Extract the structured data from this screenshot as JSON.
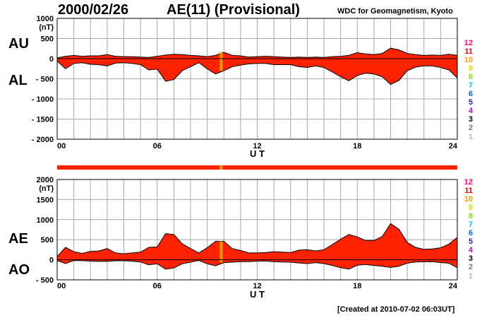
{
  "header": {
    "date": "2000/02/26",
    "title": "AE(11) (Provisional)",
    "organization": "WDC for Geomagnetism, Kyoto"
  },
  "footer": {
    "created": "[Created at 2010-07-02 06:03UT]"
  },
  "status_levels": [
    "12",
    "11",
    "10",
    "9",
    "8",
    "7",
    "6",
    "5",
    "4",
    "3",
    "2",
    "1"
  ],
  "colors": {
    "fill": "#ff2200",
    "highlight": "#ff9900",
    "grid": "#a8a8a8",
    "level_colors": [
      "#ff0077",
      "#ee0000",
      "#ff9900",
      "#dddd00",
      "#88dd00",
      "#00cccc",
      "#0066ff",
      "#2222bb",
      "#bb00dd",
      "#000000",
      "#777777",
      "#bbbbbb"
    ]
  },
  "chart_data": [
    {
      "type": "area",
      "series": [
        {
          "name": "AU",
          "x": [
            0,
            0.5,
            1,
            1.5,
            2,
            2.5,
            3,
            3.5,
            4,
            4.5,
            5,
            5.5,
            6,
            6.5,
            7,
            7.5,
            8,
            8.5,
            9,
            9.5,
            10,
            10.5,
            11,
            11.5,
            12,
            12.5,
            13,
            13.5,
            14,
            14.5,
            15,
            15.5,
            16,
            16.5,
            17,
            17.5,
            18,
            18.5,
            19,
            19.5,
            20,
            20.5,
            21,
            21.5,
            22,
            22.5,
            23,
            23.5,
            24
          ],
          "values": [
            20,
            60,
            80,
            60,
            70,
            70,
            100,
            60,
            50,
            50,
            40,
            30,
            60,
            90,
            110,
            100,
            80,
            70,
            50,
            80,
            160,
            80,
            70,
            40,
            50,
            60,
            50,
            40,
            30,
            40,
            30,
            40,
            30,
            50,
            60,
            80,
            150,
            120,
            100,
            130,
            260,
            220,
            130,
            100,
            80,
            90,
            80,
            110,
            80
          ]
        },
        {
          "name": "AL",
          "x": [
            0,
            0.5,
            1,
            1.5,
            2,
            2.5,
            3,
            3.5,
            4,
            4.5,
            5,
            5.5,
            6,
            6.5,
            7,
            7.5,
            8,
            8.5,
            9,
            9.5,
            10,
            10.5,
            11,
            11.5,
            12,
            12.5,
            13,
            13.5,
            14,
            14.5,
            15,
            15.5,
            16,
            16.5,
            17,
            17.5,
            18,
            18.5,
            19,
            19.5,
            20,
            20.5,
            21,
            21.5,
            22,
            22.5,
            23,
            23.5,
            24
          ],
          "values": [
            -60,
            -250,
            -120,
            -100,
            -140,
            -150,
            -180,
            -110,
            -100,
            -120,
            -150,
            -280,
            -260,
            -560,
            -520,
            -300,
            -200,
            -100,
            -250,
            -380,
            -300,
            -200,
            -160,
            -130,
            -120,
            -120,
            -150,
            -150,
            -150,
            -200,
            -220,
            -180,
            -220,
            -330,
            -450,
            -550,
            -420,
            -360,
            -380,
            -450,
            -640,
            -540,
            -300,
            -210,
            -180,
            -180,
            -220,
            -280,
            -480
          ]
        }
      ],
      "x_ticks": [
        "00",
        "06",
        "12",
        "18",
        "24"
      ],
      "xlabel": "U T",
      "ylabel": "(nT)",
      "ylim": [
        -2000,
        1000
      ],
      "y_ticks": [
        "1000",
        "500",
        "0",
        "- 500",
        "- 1000",
        "- 1500",
        "- 2000"
      ],
      "series_labels": [
        "AU",
        "AL"
      ],
      "grid": true
    },
    {
      "type": "area",
      "series": [
        {
          "name": "AE",
          "x": [
            0,
            0.5,
            1,
            1.5,
            2,
            2.5,
            3,
            3.5,
            4,
            4.5,
            5,
            5.5,
            6,
            6.5,
            7,
            7.5,
            8,
            8.5,
            9,
            9.5,
            10,
            10.5,
            11,
            11.5,
            12,
            12.5,
            13,
            13.5,
            14,
            14.5,
            15,
            15.5,
            16,
            16.5,
            17,
            17.5,
            18,
            18.5,
            19,
            19.5,
            20,
            20.5,
            21,
            21.5,
            22,
            22.5,
            23,
            23.5,
            24
          ],
          "values": [
            80,
            310,
            200,
            160,
            210,
            220,
            280,
            170,
            150,
            170,
            190,
            310,
            320,
            650,
            630,
            400,
            280,
            170,
            300,
            460,
            460,
            280,
            230,
            170,
            170,
            180,
            200,
            190,
            180,
            240,
            250,
            220,
            250,
            380,
            510,
            630,
            570,
            480,
            480,
            580,
            900,
            760,
            430,
            310,
            260,
            270,
            300,
            390,
            560
          ]
        },
        {
          "name": "AO",
          "x": [
            0,
            0.5,
            1,
            1.5,
            2,
            2.5,
            3,
            3.5,
            4,
            4.5,
            5,
            5.5,
            6,
            6.5,
            7,
            7.5,
            8,
            8.5,
            9,
            9.5,
            10,
            10.5,
            11,
            11.5,
            12,
            12.5,
            13,
            13.5,
            14,
            14.5,
            15,
            15.5,
            16,
            16.5,
            17,
            17.5,
            18,
            18.5,
            19,
            19.5,
            20,
            20.5,
            21,
            21.5,
            22,
            22.5,
            23,
            23.5,
            24
          ],
          "values": [
            -20,
            -95,
            -20,
            -20,
            -35,
            -40,
            -40,
            -25,
            -25,
            -35,
            -55,
            -125,
            -100,
            -235,
            -205,
            -100,
            -60,
            -15,
            -100,
            -150,
            -70,
            -60,
            -45,
            -45,
            -35,
            -30,
            -50,
            -55,
            -60,
            -80,
            -95,
            -70,
            -95,
            -140,
            -195,
            -235,
            -135,
            -120,
            -140,
            -160,
            -190,
            -160,
            -85,
            -55,
            -50,
            -45,
            -70,
            -85,
            -200
          ]
        }
      ],
      "x_ticks": [
        "00",
        "06",
        "12",
        "18",
        "24"
      ],
      "xlabel": "U T",
      "ylabel": "(nT)",
      "ylim": [
        -500,
        2000
      ],
      "y_ticks": [
        "2000",
        "1500",
        "1000",
        "500",
        "0",
        "- 500"
      ],
      "series_labels": [
        "AE",
        "AO"
      ],
      "grid": true
    }
  ]
}
